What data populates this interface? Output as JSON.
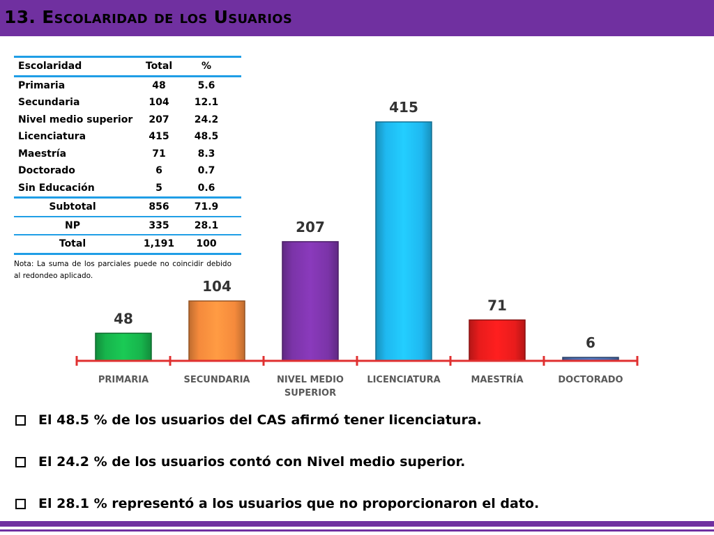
{
  "title": "13. Escolaridad de los Usuarios",
  "colors": {
    "theme_purple": "#7030a0",
    "table_rule": "#1f9ee6",
    "axis": "#e03030"
  },
  "table": {
    "headers": {
      "name": "Escolaridad",
      "total": "Total",
      "pct": "%"
    },
    "rows": [
      {
        "name": "Primaria",
        "total": "48",
        "pct": "5.6"
      },
      {
        "name": "Secundaria",
        "total": "104",
        "pct": "12.1"
      },
      {
        "name": "Nivel medio superior",
        "total": "207",
        "pct": "24.2"
      },
      {
        "name": "Licenciatura",
        "total": "415",
        "pct": "48.5"
      },
      {
        "name": "Maestría",
        "total": "71",
        "pct": "8.3"
      },
      {
        "name": "Doctorado",
        "total": "6",
        "pct": "0.7"
      },
      {
        "name": "Sin Educación",
        "total": "5",
        "pct": "0.6"
      }
    ],
    "subtotal": {
      "name": "Subtotal",
      "total": "856",
      "pct": "71.9"
    },
    "np": {
      "name": "NP",
      "total": "335",
      "pct": "28.1"
    },
    "total": {
      "name": "Total",
      "total": "1,191",
      "pct": "100"
    },
    "note": "Nota: La suma de los parciales puede no coincidir debido al redondeo aplicado."
  },
  "chart_data": {
    "type": "bar",
    "categories": [
      "PRIMARIA",
      "SECUNDARIA",
      "NIVEL MEDIO SUPERIOR",
      "LICENCIATURA",
      "MAESTRÍA",
      "DOCTORADO"
    ],
    "category_lines": [
      [
        "PRIMARIA"
      ],
      [
        "SECUNDARIA"
      ],
      [
        "NIVEL MEDIO",
        "SUPERIOR"
      ],
      [
        "LICENCIATURA"
      ],
      [
        "MAESTRÍA"
      ],
      [
        "DOCTORADO"
      ]
    ],
    "values": [
      48,
      104,
      207,
      415,
      71,
      6
    ],
    "data_labels": [
      "48",
      "104",
      "207",
      "415",
      "71",
      "6"
    ],
    "bar_colors": [
      "#17b44c",
      "#f58a3c",
      "#7b34a8",
      "#1fb8f0",
      "#e81c1c",
      "#4a6cae"
    ],
    "ylim": [
      0,
      415
    ],
    "grid": false,
    "legend": "none"
  },
  "bullets": [
    "El 48.5 % de los usuarios del CAS afirmó tener licenciatura.",
    "El 24.2 % de los usuarios contó con Nivel medio superior.",
    "El 28.1 % representó a los usuarios que no proporcionaron el dato."
  ]
}
